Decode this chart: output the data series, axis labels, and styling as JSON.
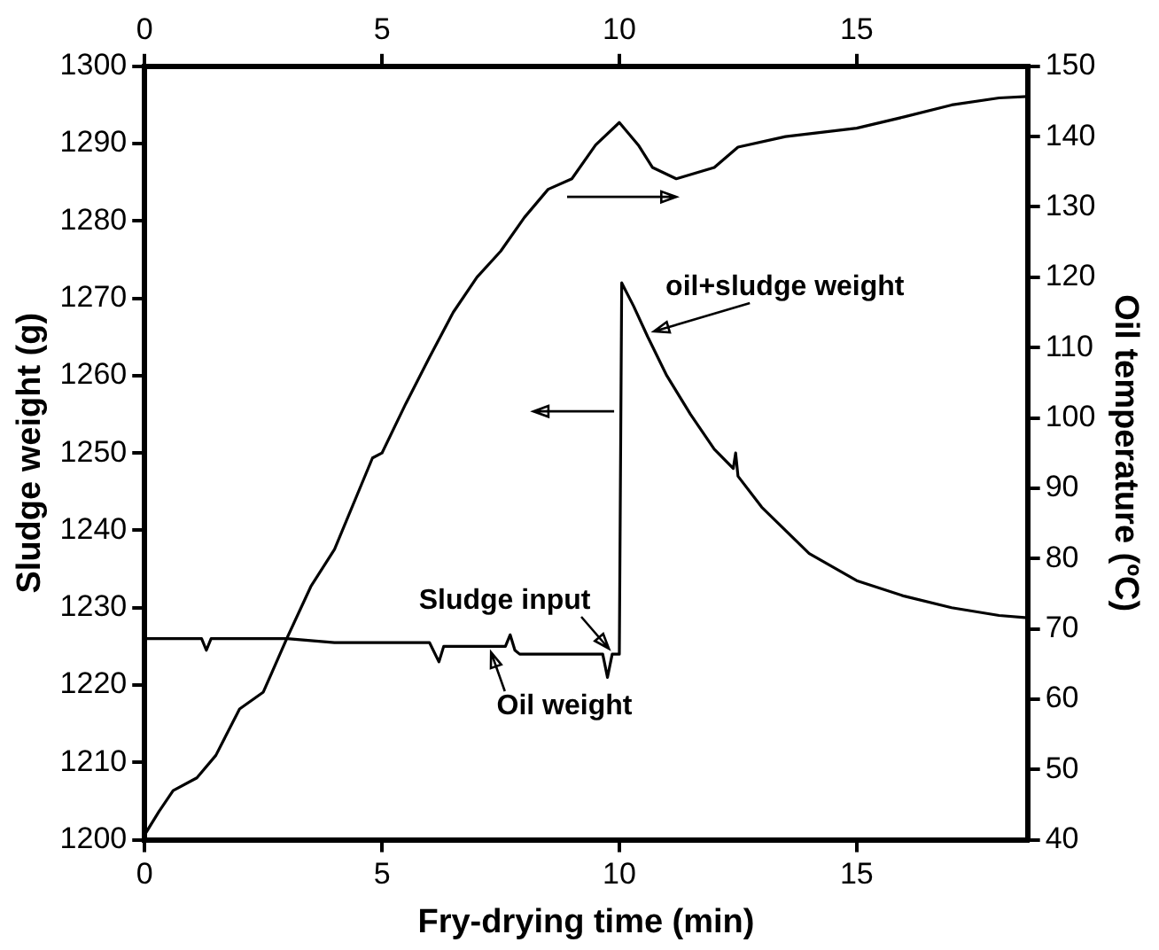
{
  "chart_data": {
    "type": "line",
    "xlabel": "Fry-drying time (min)",
    "ylabel": "Sludge weight (g)",
    "y2label": "Oil temperature (ºC)",
    "xlim": [
      0,
      18.6
    ],
    "xticks": [
      0,
      5,
      10,
      15
    ],
    "x2lim": [
      0,
      18.6
    ],
    "x2ticks": [
      0,
      5,
      10,
      15
    ],
    "ylim": [
      1200,
      1300
    ],
    "yticks": [
      1200,
      1210,
      1220,
      1230,
      1240,
      1250,
      1260,
      1270,
      1280,
      1290,
      1300
    ],
    "y2lim": [
      40,
      150
    ],
    "y2ticks": [
      40,
      50,
      60,
      70,
      80,
      90,
      100,
      110,
      120,
      130,
      140,
      150
    ],
    "grid": false,
    "legend": false,
    "marker": "none",
    "line_style": "solid",
    "series": [
      {
        "color": "#000000",
        "axis": "y",
        "x": [
          0,
          0.5,
          1.2,
          1.3,
          1.4,
          2,
          3,
          4,
          5,
          5.5,
          6,
          6.2,
          6.3,
          6.4,
          7,
          7.6,
          7.7,
          7.8,
          7.9,
          8.5,
          9,
          9.5,
          9.65,
          9.75,
          9.85,
          9.9,
          10,
          10.05,
          10.3,
          10.6,
          11,
          11.5,
          12,
          12.4,
          12.45,
          12.5,
          13,
          14,
          15,
          16,
          17,
          18,
          18.6
        ],
        "values": [
          1226,
          1226,
          1226,
          1224.5,
          1226,
          1226,
          1226,
          1225.5,
          1225.5,
          1225.5,
          1225.5,
          1223,
          1225,
          1225,
          1225,
          1225,
          1226.5,
          1224.5,
          1224,
          1224,
          1224,
          1224,
          1224,
          1221,
          1224,
          1224,
          1224,
          1272,
          1269,
          1265,
          1260,
          1255,
          1250.5,
          1248,
          1250,
          1247,
          1243,
          1237,
          1233.5,
          1231.5,
          1230,
          1229,
          1228.7
        ]
      },
      {
        "color": "#000000",
        "axis": "y2",
        "x": [
          0,
          0.3,
          0.6,
          1.1,
          1.5,
          2,
          2.5,
          3,
          3.5,
          4,
          4.8,
          5,
          5.5,
          6,
          6.5,
          7,
          7.5,
          8,
          8.5,
          9,
          9.5,
          10,
          10.4,
          10.7,
          11.2,
          12,
          12.5,
          13.5,
          15,
          16,
          17,
          18,
          18.6
        ],
        "values": [
          40.7,
          44,
          47,
          48.8,
          52,
          58.6,
          61,
          68.7,
          76,
          81.3,
          94.3,
          95,
          102,
          108.6,
          115,
          120,
          123.7,
          128.5,
          132.5,
          134,
          138.8,
          142,
          138.8,
          135.6,
          134,
          135.6,
          138.5,
          140,
          141.2,
          142.8,
          144.5,
          145.5,
          145.7
        ]
      }
    ],
    "annotations": [
      {
        "text": "oil+sludge weight",
        "x": 10.6,
        "y": 1265
      },
      {
        "text": "Sludge input",
        "x": 9.9,
        "y": 1224
      },
      {
        "text": "Oil weight",
        "x": 7.2,
        "y": 1225
      }
    ]
  }
}
